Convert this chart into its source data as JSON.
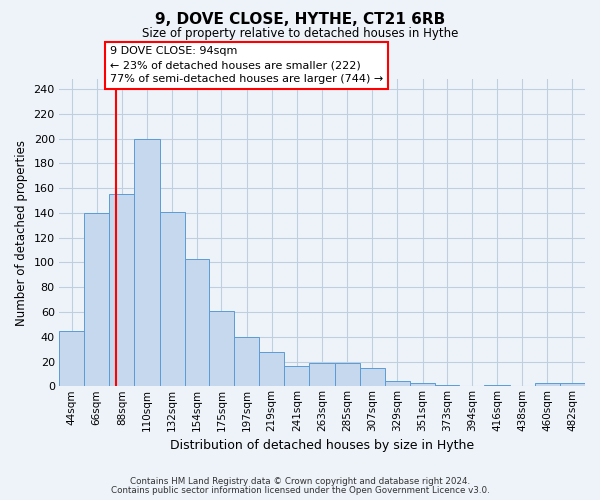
{
  "title": "9, DOVE CLOSE, HYTHE, CT21 6RB",
  "subtitle": "Size of property relative to detached houses in Hythe",
  "xlabel": "Distribution of detached houses by size in Hythe",
  "ylabel": "Number of detached properties",
  "bin_labels": [
    "44sqm",
    "66sqm",
    "88sqm",
    "110sqm",
    "132sqm",
    "154sqm",
    "175sqm",
    "197sqm",
    "219sqm",
    "241sqm",
    "263sqm",
    "285sqm",
    "307sqm",
    "329sqm",
    "351sqm",
    "373sqm",
    "394sqm",
    "416sqm",
    "438sqm",
    "460sqm",
    "482sqm"
  ],
  "bin_edges": [
    44,
    66,
    88,
    110,
    132,
    154,
    175,
    197,
    219,
    241,
    263,
    285,
    307,
    329,
    351,
    373,
    394,
    416,
    438,
    460,
    482,
    504
  ],
  "bar_heights": [
    45,
    140,
    155,
    200,
    141,
    103,
    61,
    40,
    28,
    16,
    19,
    19,
    15,
    4,
    3,
    1,
    0,
    1,
    0,
    3,
    3
  ],
  "bar_color": "#c5d8ed",
  "bar_edge_color": "#5b9bd5",
  "ylim": [
    0,
    248
  ],
  "yticks": [
    0,
    20,
    40,
    60,
    80,
    100,
    120,
    140,
    160,
    180,
    200,
    220,
    240
  ],
  "grid_color": "#c0cfe0",
  "background_color": "#eef3fa",
  "property_line_x": 94,
  "property_line_color": "red",
  "annotation_box_title": "9 DOVE CLOSE: 94sqm",
  "annotation_line1": "← 23% of detached houses are smaller (222)",
  "annotation_line2": "77% of semi-detached houses are larger (744) →",
  "annotation_box_color": "white",
  "annotation_box_edge_color": "red",
  "footer1": "Contains HM Land Registry data © Crown copyright and database right 2024.",
  "footer2": "Contains public sector information licensed under the Open Government Licence v3.0."
}
